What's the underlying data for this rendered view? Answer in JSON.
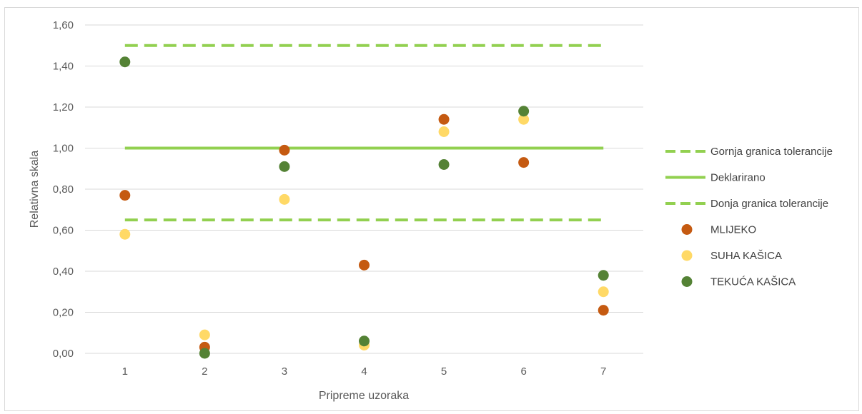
{
  "chart_data": {
    "type": "scatter",
    "xlabel": "Pripreme uzoraka",
    "ylabel": "Relativna skala",
    "x": [
      1,
      2,
      3,
      4,
      5,
      6,
      7
    ],
    "x_tick_labels": [
      "1",
      "2",
      "3",
      "4",
      "5",
      "6",
      "7"
    ],
    "ylim": [
      0,
      1.6
    ],
    "y_ticks": [
      0,
      0.2,
      0.4,
      0.6,
      0.8,
      1.0,
      1.2,
      1.4,
      1.6
    ],
    "y_tick_labels": [
      "0,00",
      "0,20",
      "0,40",
      "0,60",
      "0,80",
      "1,00",
      "1,20",
      "1,40",
      "1,60"
    ],
    "grid": true,
    "legend_position": "right",
    "lines": [
      {
        "name": "Gornja granica tolerancije",
        "style": "dashed",
        "color": "#92d050",
        "x": [
          1,
          7
        ],
        "y": [
          1.5,
          1.5
        ]
      },
      {
        "name": "Deklarirano",
        "style": "solid",
        "color": "#92d050",
        "x": [
          1,
          7
        ],
        "y": [
          1.0,
          1.0
        ]
      },
      {
        "name": "Donja granica tolerancije",
        "style": "dashed",
        "color": "#92d050",
        "x": [
          1,
          7
        ],
        "y": [
          0.65,
          0.65
        ]
      }
    ],
    "series": [
      {
        "name": "MLIJEKO",
        "color": "#c55a11",
        "x": [
          1,
          2,
          3,
          4,
          5,
          6,
          7
        ],
        "values": [
          0.77,
          0.03,
          0.99,
          0.43,
          1.14,
          0.93,
          0.21
        ]
      },
      {
        "name": "SUHA KAŠICA",
        "color": "#ffd966",
        "x": [
          1,
          2,
          3,
          4,
          5,
          6,
          7
        ],
        "values": [
          0.58,
          0.09,
          0.75,
          0.04,
          1.08,
          1.14,
          0.3
        ]
      },
      {
        "name": "TEKUĆA KAŠICA",
        "color": "#548235",
        "x": [
          1,
          2,
          4,
          3,
          5,
          6,
          7
        ],
        "values": [
          1.42,
          0.0,
          0.06,
          0.91,
          0.92,
          1.18,
          0.38
        ]
      }
    ]
  }
}
